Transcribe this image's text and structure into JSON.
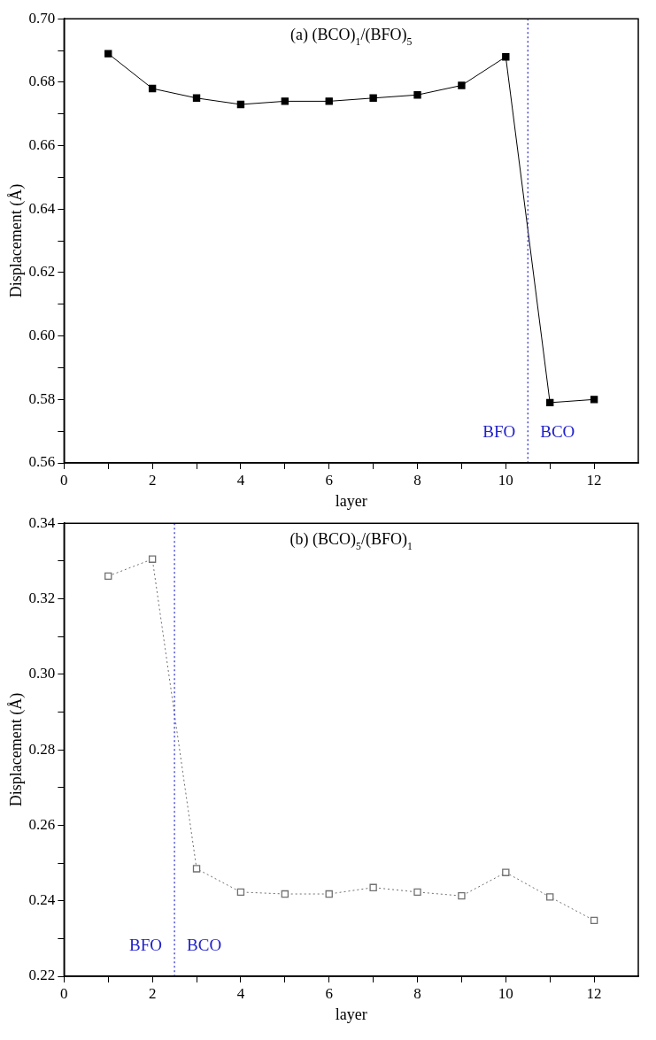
{
  "chart_data": [
    {
      "type": "line",
      "title": "(a) (BCO)$_{1}$/(BFO)$_{5}$",
      "xlabel": "layer",
      "ylabel": "Displacement (Å)",
      "xlim": [
        0,
        13
      ],
      "xticks": [
        0,
        {
          "value": 1,
          "label": null
        },
        2,
        {
          "value": 3,
          "label": null
        },
        4,
        {
          "value": 5,
          "label": null
        },
        6,
        {
          "value": 7,
          "label": null
        },
        8,
        {
          "value": 9,
          "label": null
        },
        10,
        {
          "value": 11,
          "label": null
        },
        12
      ],
      "ylim": [
        0.56,
        0.7
      ],
      "yticks": [
        0.56,
        {
          "value": 0.57,
          "label": null
        },
        0.58,
        {
          "value": 0.59,
          "label": null
        },
        {
          "value": 0.6,
          "label": "0.60"
        },
        {
          "value": 0.61,
          "label": null
        },
        0.62,
        {
          "value": 0.63,
          "label": null
        },
        0.64,
        {
          "value": 0.65,
          "label": null
        },
        0.66,
        {
          "value": 0.67,
          "label": null
        },
        0.68,
        {
          "value": 0.69,
          "label": null
        },
        {
          "value": 0.7,
          "label": "0.70"
        }
      ],
      "x": [
        1,
        2,
        3,
        4,
        5,
        6,
        7,
        8,
        9,
        10,
        11,
        12
      ],
      "series": [
        {
          "color": "#000000",
          "marker": "square",
          "line_style": "solid",
          "values": [
            0.689,
            0.678,
            0.675,
            0.673,
            0.674,
            0.674,
            0.675,
            0.676,
            0.679,
            0.688,
            0.579,
            0.58
          ]
        }
      ],
      "ref_lines": [
        {
          "axis": "x",
          "value": 10.5,
          "color": "#2222cc",
          "line_style": "dotted"
        }
      ],
      "annotations": [
        "BFO",
        "BCO"
      ],
      "grid": false,
      "legend": false
    },
    {
      "type": "line",
      "title": "(b) (BCO)$_{5}$/(BFO)$_{1}$",
      "xlabel": "layer",
      "ylabel": "Displacement (Å)",
      "xlim": [
        0,
        13
      ],
      "xticks": [
        0,
        {
          "value": 1,
          "label": null
        },
        2,
        {
          "value": 3,
          "label": null
        },
        4,
        {
          "value": 5,
          "label": null
        },
        6,
        {
          "value": 7,
          "label": null
        },
        8,
        {
          "value": 9,
          "label": null
        },
        10,
        {
          "value": 11,
          "label": null
        },
        12
      ],
      "ylim": [
        0.22,
        0.34
      ],
      "yticks": [
        0.22,
        {
          "value": 0.23,
          "label": null
        },
        0.24,
        {
          "value": 0.25,
          "label": null
        },
        0.26,
        {
          "value": 0.27,
          "label": null
        },
        0.28,
        {
          "value": 0.29,
          "label": null
        },
        {
          "value": 0.3,
          "label": "0.30"
        },
        {
          "value": 0.31,
          "label": null
        },
        0.32,
        {
          "value": 0.33,
          "label": null
        },
        0.34
      ],
      "x": [
        1,
        2,
        3,
        4,
        5,
        6,
        7,
        8,
        9,
        10,
        11,
        12
      ],
      "series": [
        {
          "color": "#707070",
          "marker": "square",
          "line_style": "dotted",
          "values": [
            0.326,
            0.3305,
            0.2485,
            0.2423,
            0.2418,
            0.2418,
            0.2435,
            0.2423,
            0.2413,
            0.2475,
            0.241,
            0.2348
          ]
        }
      ],
      "ref_lines": [
        {
          "axis": "x",
          "value": 2.5,
          "color": "#2222cc",
          "line_style": "dotted"
        }
      ],
      "annotations": [
        "BFO",
        "BCO"
      ],
      "grid": false,
      "legend": false
    }
  ]
}
